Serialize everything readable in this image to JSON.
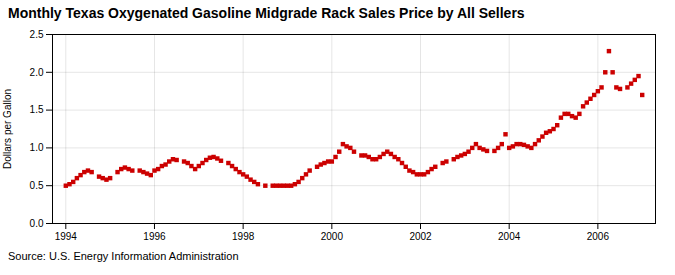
{
  "chart_data": {
    "type": "scatter",
    "title": "Monthly Texas Oxygenated Gasoline Midgrade Rack Sales Price by All Sellers",
    "ylabel": "Dollars per Gallon",
    "annotations": [
      "Source: U.S. Energy Information Administration"
    ],
    "color": "#cc0000",
    "marker": "square",
    "grid": true,
    "xlim": [
      1993.7,
      2007.3
    ],
    "xticks": [
      1994,
      1996,
      1998,
      2000,
      2002,
      2004,
      2006
    ],
    "ylim": [
      0.0,
      2.5
    ],
    "yticks": [
      {
        "value": 0.0,
        "label": "0.0"
      },
      0.5,
      {
        "value": 1.0,
        "label": "1.0"
      },
      1.5,
      {
        "value": 2.0,
        "label": "2.0"
      },
      2.5
    ],
    "x": [
      1994.0,
      1994.083,
      1994.167,
      1994.25,
      1994.333,
      1994.417,
      1994.5,
      1994.583,
      1994.75,
      1994.833,
      1994.917,
      1995.0,
      1995.167,
      1995.25,
      1995.333,
      1995.417,
      1995.5,
      1995.667,
      1995.75,
      1995.833,
      1995.917,
      1996.0,
      1996.083,
      1996.167,
      1996.25,
      1996.333,
      1996.417,
      1996.5,
      1996.667,
      1996.75,
      1996.833,
      1996.917,
      1997.0,
      1997.083,
      1997.167,
      1997.25,
      1997.333,
      1997.417,
      1997.5,
      1997.667,
      1997.75,
      1997.833,
      1997.917,
      1998.0,
      1998.083,
      1998.167,
      1998.25,
      1998.333,
      1998.5,
      1998.667,
      1998.75,
      1998.833,
      1998.917,
      1999.0,
      1999.083,
      1999.167,
      1999.25,
      1999.333,
      1999.417,
      1999.5,
      1999.667,
      1999.75,
      1999.833,
      1999.917,
      2000.0,
      2000.083,
      2000.167,
      2000.25,
      2000.333,
      2000.417,
      2000.5,
      2000.667,
      2000.75,
      2000.833,
      2000.917,
      2001.0,
      2001.083,
      2001.167,
      2001.25,
      2001.333,
      2001.417,
      2001.5,
      2001.583,
      2001.667,
      2001.75,
      2001.833,
      2001.917,
      2002.0,
      2002.083,
      2002.167,
      2002.25,
      2002.333,
      2002.5,
      2002.583,
      2002.75,
      2002.833,
      2002.917,
      2003.0,
      2003.083,
      2003.167,
      2003.25,
      2003.333,
      2003.417,
      2003.5,
      2003.667,
      2003.75,
      2003.833,
      2003.917,
      2004.0,
      2004.083,
      2004.167,
      2004.25,
      2004.333,
      2004.417,
      2004.5,
      2004.583,
      2004.667,
      2004.75,
      2004.833,
      2004.917,
      2005.0,
      2005.083,
      2005.167,
      2005.25,
      2005.333,
      2005.417,
      2005.5,
      2005.583,
      2005.667,
      2005.75,
      2005.833,
      2005.917,
      2006.0,
      2006.083,
      2006.167,
      2006.25,
      2006.333,
      2006.417,
      2006.5,
      2006.667,
      2006.75,
      2006.833,
      2006.917,
      2007.0
    ],
    "values": [
      0.5,
      0.52,
      0.55,
      0.6,
      0.64,
      0.68,
      0.7,
      0.68,
      0.62,
      0.6,
      0.58,
      0.6,
      0.68,
      0.72,
      0.74,
      0.72,
      0.7,
      0.7,
      0.68,
      0.66,
      0.64,
      0.7,
      0.72,
      0.76,
      0.78,
      0.82,
      0.85,
      0.84,
      0.82,
      0.8,
      0.76,
      0.72,
      0.76,
      0.8,
      0.84,
      0.87,
      0.88,
      0.86,
      0.83,
      0.8,
      0.76,
      0.72,
      0.68,
      0.65,
      0.62,
      0.58,
      0.55,
      0.52,
      0.5,
      0.5,
      0.5,
      0.5,
      0.5,
      0.5,
      0.5,
      0.52,
      0.55,
      0.6,
      0.65,
      0.7,
      0.75,
      0.78,
      0.8,
      0.82,
      0.82,
      0.88,
      0.95,
      1.05,
      1.02,
      1.0,
      0.95,
      0.9,
      0.9,
      0.88,
      0.85,
      0.85,
      0.88,
      0.92,
      0.95,
      0.92,
      0.88,
      0.85,
      0.8,
      0.75,
      0.7,
      0.68,
      0.65,
      0.65,
      0.65,
      0.68,
      0.72,
      0.75,
      0.8,
      0.82,
      0.85,
      0.88,
      0.9,
      0.92,
      0.95,
      1.0,
      1.05,
      1.0,
      0.98,
      0.96,
      0.96,
      1.0,
      1.05,
      1.18,
      1.0,
      1.02,
      1.05,
      1.05,
      1.04,
      1.02,
      1.0,
      1.05,
      1.1,
      1.15,
      1.2,
      1.22,
      1.25,
      1.3,
      1.4,
      1.45,
      1.45,
      1.42,
      1.4,
      1.45,
      1.55,
      1.6,
      1.65,
      1.7,
      1.75,
      1.8,
      2.0,
      2.28,
      2.0,
      1.8,
      1.78,
      1.8,
      1.85,
      1.9,
      1.95,
      1.7
    ]
  }
}
